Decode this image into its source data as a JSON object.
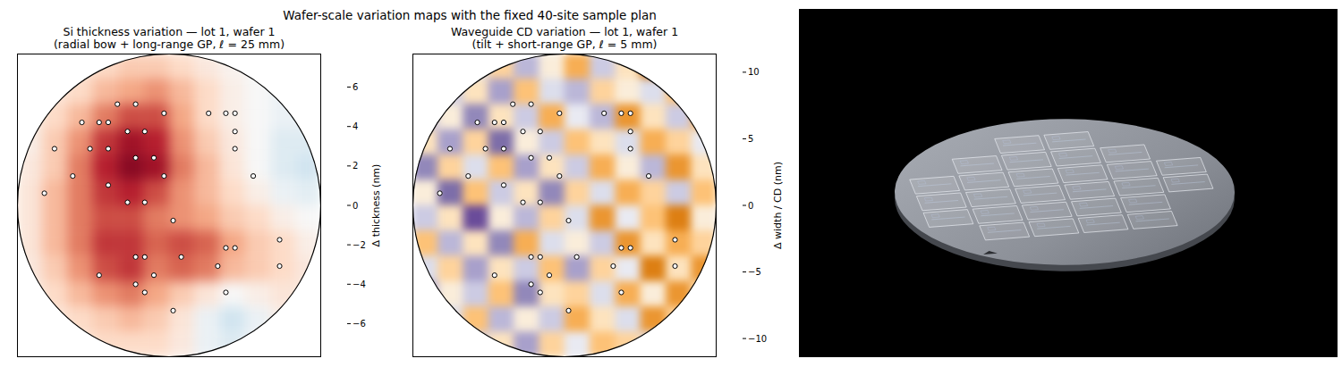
{
  "title": "Wafer-scale variation maps with the fixed 40-site sample plan",
  "chart_data": [
    {
      "type": "heatmap",
      "title": "Si thickness variation — lot 1, wafer 1",
      "subtitle": "(radial bow + long-range GP, ℓ = 25 mm)",
      "xlim": [
        -150,
        150
      ],
      "ylim": [
        -150,
        150
      ],
      "tick_labels": false,
      "cells": [
        [
          null,
          null,
          1.0,
          1.5,
          2.0,
          2.0,
          1.5,
          0.8,
          0.3,
          0.0,
          null,
          null
        ],
        [
          null,
          1.0,
          1.5,
          2.5,
          3.0,
          3.5,
          2.5,
          1.5,
          0.5,
          0.0,
          -0.5,
          null
        ],
        [
          0.5,
          1.5,
          2.5,
          4.0,
          5.0,
          5.0,
          3.0,
          1.5,
          0.5,
          0.0,
          -0.5,
          -0.5
        ],
        [
          0.5,
          2.0,
          3.5,
          5.5,
          6.5,
          6.0,
          3.5,
          2.0,
          0.8,
          0.0,
          -1.0,
          -1.0
        ],
        [
          0.8,
          2.0,
          4.0,
          6.0,
          7.0,
          6.5,
          4.0,
          2.5,
          1.0,
          0.0,
          -1.0,
          -1.5
        ],
        [
          1.0,
          2.5,
          4.0,
          5.5,
          6.0,
          5.0,
          3.5,
          2.5,
          1.5,
          0.5,
          -0.5,
          -0.8
        ],
        [
          1.0,
          2.5,
          4.0,
          5.0,
          5.0,
          4.0,
          3.5,
          3.0,
          2.0,
          1.5,
          0.5,
          0.0
        ],
        [
          1.0,
          2.5,
          4.0,
          5.5,
          5.5,
          4.5,
          5.0,
          4.5,
          3.0,
          2.0,
          1.5,
          0.5
        ],
        [
          0.8,
          2.0,
          3.5,
          5.0,
          5.5,
          4.0,
          4.5,
          4.0,
          2.5,
          2.0,
          1.5,
          0.8
        ],
        [
          0.5,
          1.5,
          2.5,
          3.5,
          4.0,
          3.0,
          2.0,
          1.0,
          0.0,
          0.5,
          1.0,
          0.8
        ],
        [
          null,
          1.0,
          1.5,
          2.0,
          2.5,
          2.0,
          1.0,
          -0.5,
          -1.5,
          -0.5,
          0.5,
          null
        ],
        [
          null,
          null,
          1.0,
          1.5,
          1.5,
          1.5,
          0.8,
          -0.5,
          -1.0,
          -0.3,
          null,
          null
        ]
      ],
      "points": {
        "marker": "circle",
        "x": [
          -51,
          -33,
          -5,
          39,
          56,
          65,
          -86,
          -69,
          -60,
          65,
          -41,
          -24,
          -113,
          -78,
          -60,
          65,
          -33,
          -15,
          -95,
          -5,
          83,
          -123,
          -60,
          -41,
          -24,
          4,
          -33,
          -24,
          12,
          48,
          56,
          65,
          109,
          109,
          -69,
          -15,
          -33,
          -24,
          56,
          4
        ],
        "y": [
          100,
          100,
          91,
          91,
          91,
          91,
          82,
          82,
          82,
          73,
          73,
          73,
          56,
          56,
          56,
          56,
          47,
          47,
          29,
          29,
          29,
          12,
          20,
          3,
          3,
          -15,
          -51,
          -51,
          -51,
          -60,
          -42,
          -42,
          -34,
          -60,
          -69,
          -69,
          -78,
          -86,
          -86,
          -104
        ]
      },
      "colorbar": {
        "label": "Δ thickness (nm)",
        "range": [
          -7.7,
          7.7
        ],
        "ticks": [
          {
            "value": -6,
            "label": "−6"
          },
          {
            "value": -4,
            "label": "−4"
          },
          {
            "value": -2,
            "label": "−2"
          },
          0,
          2,
          4,
          6
        ]
      }
    },
    {
      "type": "heatmap",
      "title": "Waveguide CD variation — lot 1, wafer 1",
      "subtitle": "(tilt + short-range GP, ℓ = 5 mm)",
      "xlim": [
        -150,
        150
      ],
      "ylim": [
        -150,
        150
      ],
      "tick_labels": false,
      "cells": [
        [
          null,
          null,
          -2,
          3,
          -4,
          1,
          5,
          -3,
          2,
          8,
          null,
          null
        ],
        [
          null,
          -3,
          2,
          -5,
          4,
          -2,
          -4,
          3,
          1,
          -2,
          4,
          null
        ],
        [
          -4,
          1,
          -6,
          2,
          -3,
          5,
          -1,
          -4,
          6,
          2,
          -3,
          5
        ],
        [
          2,
          -5,
          3,
          -7,
          1,
          -3,
          4,
          2,
          -2,
          5,
          3,
          -1
        ],
        [
          -6,
          3,
          -2,
          4,
          -5,
          2,
          -3,
          5,
          1,
          -4,
          6,
          2
        ],
        [
          1,
          -7,
          4,
          -3,
          2,
          -6,
          3,
          -2,
          5,
          3,
          -3,
          4
        ],
        [
          -3,
          2,
          -8,
          1,
          -4,
          3,
          -2,
          6,
          -1,
          4,
          7,
          1
        ],
        [
          4,
          -4,
          2,
          -6,
          5,
          -2,
          1,
          -3,
          6,
          2,
          5,
          3
        ],
        [
          -2,
          3,
          -5,
          2,
          -3,
          4,
          -5,
          3,
          -1,
          7,
          2,
          6
        ],
        [
          -5,
          1,
          -3,
          4,
          -6,
          2,
          3,
          -2,
          5,
          1,
          6,
          2
        ],
        [
          null,
          -2,
          4,
          -4,
          1,
          -3,
          5,
          2,
          -2,
          6,
          3,
          null
        ],
        [
          null,
          null,
          -3,
          2,
          -5,
          3,
          -1,
          4,
          3,
          -2,
          null,
          null
        ]
      ],
      "points": {
        "marker": "circle",
        "x": [
          -51,
          -33,
          -5,
          39,
          56,
          65,
          -86,
          -69,
          -60,
          65,
          -41,
          -24,
          -113,
          -78,
          -60,
          65,
          -33,
          -15,
          -95,
          -5,
          83,
          -123,
          -60,
          -41,
          -24,
          4,
          -33,
          -24,
          12,
          48,
          56,
          65,
          109,
          109,
          -69,
          -15,
          -33,
          -24,
          56,
          4
        ],
        "y": [
          100,
          100,
          91,
          91,
          91,
          91,
          82,
          82,
          82,
          73,
          73,
          73,
          56,
          56,
          56,
          56,
          47,
          47,
          29,
          29,
          29,
          12,
          20,
          3,
          3,
          -15,
          -51,
          -51,
          -51,
          -60,
          -42,
          -42,
          -34,
          -60,
          -69,
          -69,
          -78,
          -86,
          -86,
          -104
        ]
      },
      "colorbar": {
        "label": "Δ width / CD (nm)",
        "range": [
          -11.4,
          11.4
        ],
        "ticks": [
          {
            "value": -10,
            "label": "−10"
          },
          {
            "value": -5,
            "label": "−5"
          },
          0,
          5,
          10
        ]
      }
    }
  ]
}
